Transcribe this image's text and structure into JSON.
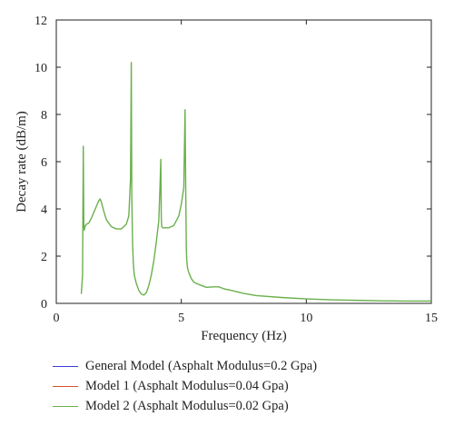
{
  "chart_data": {
    "type": "line",
    "xlabel": "Frequency (Hz)",
    "ylabel": "Decay rate (dB/m)",
    "xlim": [
      0,
      15
    ],
    "ylim": [
      0,
      12
    ],
    "xticks": [
      0,
      5,
      10,
      15
    ],
    "yticks": [
      0,
      2,
      4,
      6,
      8,
      10,
      12
    ],
    "grid": false,
    "legend_position": "bottom",
    "series": [
      {
        "name": "General Model (Asphalt Modulus=0.2 Gpa)",
        "color": "#3b3bd6",
        "x": [],
        "y": []
      },
      {
        "name": "Model 1 (Asphalt Modulus=0.04 Gpa)",
        "color": "#d9542b",
        "x": [],
        "y": []
      },
      {
        "name": "Model 2 (Asphalt Modulus=0.02 Gpa)",
        "color": "#6ab04c",
        "x": [
          1.0,
          1.05,
          1.08,
          1.1,
          1.12,
          1.15,
          1.2,
          1.3,
          1.4,
          1.5,
          1.6,
          1.7,
          1.75,
          1.8,
          1.9,
          2.0,
          2.2,
          2.4,
          2.6,
          2.8,
          2.9,
          2.97,
          3.0,
          3.02,
          3.05,
          3.08,
          3.12,
          3.2,
          3.3,
          3.4,
          3.5,
          3.6,
          3.7,
          3.8,
          3.9,
          4.0,
          4.1,
          4.15,
          4.18,
          4.2,
          4.22,
          4.25,
          4.3,
          4.5,
          4.7,
          4.9,
          5.0,
          5.1,
          5.15,
          5.18,
          5.2,
          5.22,
          5.25,
          5.3,
          5.4,
          5.5,
          5.7,
          6.0,
          6.3,
          6.5,
          6.7,
          7.0,
          7.5,
          8.0,
          9.0,
          10.0,
          11.0,
          12.0,
          13.0,
          14.0,
          15.0
        ],
        "y": [
          0.4,
          1.2,
          6.65,
          3.4,
          3.1,
          3.25,
          3.35,
          3.4,
          3.6,
          3.85,
          4.1,
          4.35,
          4.42,
          4.3,
          3.9,
          3.55,
          3.25,
          3.15,
          3.15,
          3.35,
          3.7,
          5.3,
          10.2,
          4.5,
          2.6,
          1.7,
          1.2,
          0.85,
          0.55,
          0.4,
          0.35,
          0.45,
          0.75,
          1.2,
          1.8,
          2.6,
          3.5,
          5.0,
          6.1,
          3.6,
          3.25,
          3.2,
          3.2,
          3.2,
          3.3,
          3.7,
          4.2,
          4.9,
          8.2,
          4.5,
          2.4,
          1.8,
          1.5,
          1.3,
          1.05,
          0.9,
          0.8,
          0.68,
          0.7,
          0.7,
          0.62,
          0.55,
          0.42,
          0.33,
          0.25,
          0.19,
          0.15,
          0.13,
          0.11,
          0.1,
          0.1
        ]
      }
    ]
  }
}
